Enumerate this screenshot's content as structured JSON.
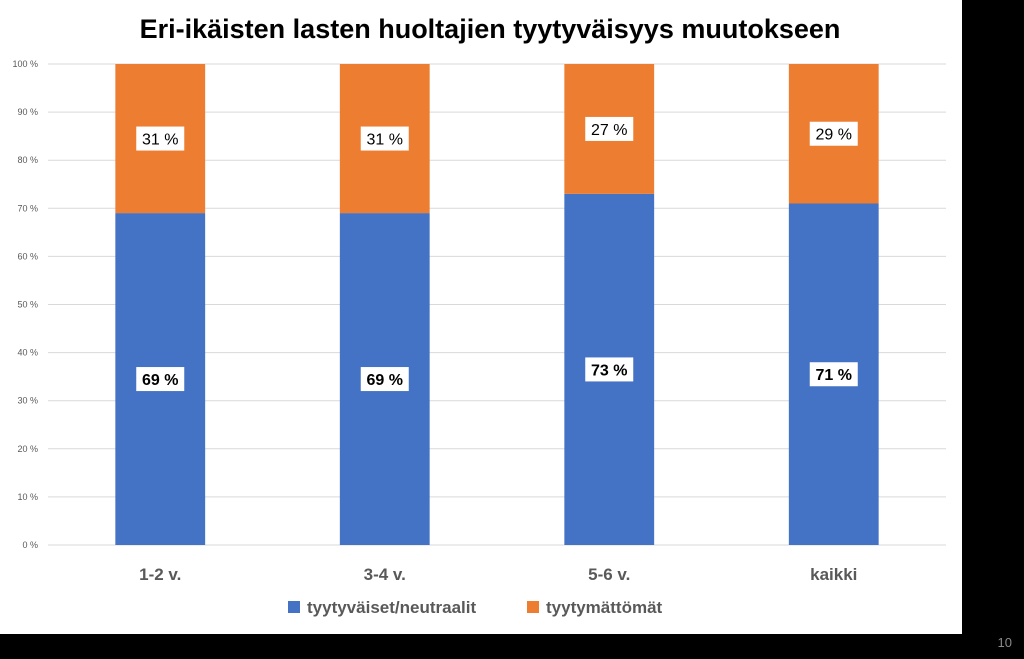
{
  "slide": {
    "page_number": "10"
  },
  "chart_data": {
    "type": "bar",
    "stacked": true,
    "title": "Eri-ikäisten lasten huoltajien tyytyväisyys muutokseen",
    "xlabel": "",
    "ylabel": "",
    "categories": [
      "1-2 v.",
      "3-4 v.",
      "5-6 v.",
      "kaikki"
    ],
    "series": [
      {
        "name": "tyytyväiset/neutraalit",
        "values": [
          69,
          69,
          73,
          71
        ],
        "labels": [
          "69 %",
          "69 %",
          "73 %",
          "71 %"
        ],
        "color": "#4472C4"
      },
      {
        "name": "tyytymättömät",
        "values": [
          31,
          31,
          27,
          29
        ],
        "labels": [
          "31 %",
          "31 %",
          "27 %",
          "29 %"
        ],
        "color": "#ED7D31"
      }
    ],
    "ylim": [
      0,
      100
    ],
    "yticks": [
      {
        "value": 0,
        "label": "0 %"
      },
      {
        "value": 10,
        "label": "10 %"
      },
      {
        "value": 20,
        "label": "20 %"
      },
      {
        "value": 30,
        "label": "30 %"
      },
      {
        "value": 40,
        "label": "40 %"
      },
      {
        "value": 50,
        "label": "50 %"
      },
      {
        "value": 60,
        "label": "60 %"
      },
      {
        "value": 70,
        "label": "70 %"
      },
      {
        "value": 80,
        "label": "80 %"
      },
      {
        "value": 90,
        "label": "90 %"
      },
      {
        "value": 100,
        "label": "100 %"
      }
    ],
    "grid": true,
    "legend": "bottom"
  }
}
